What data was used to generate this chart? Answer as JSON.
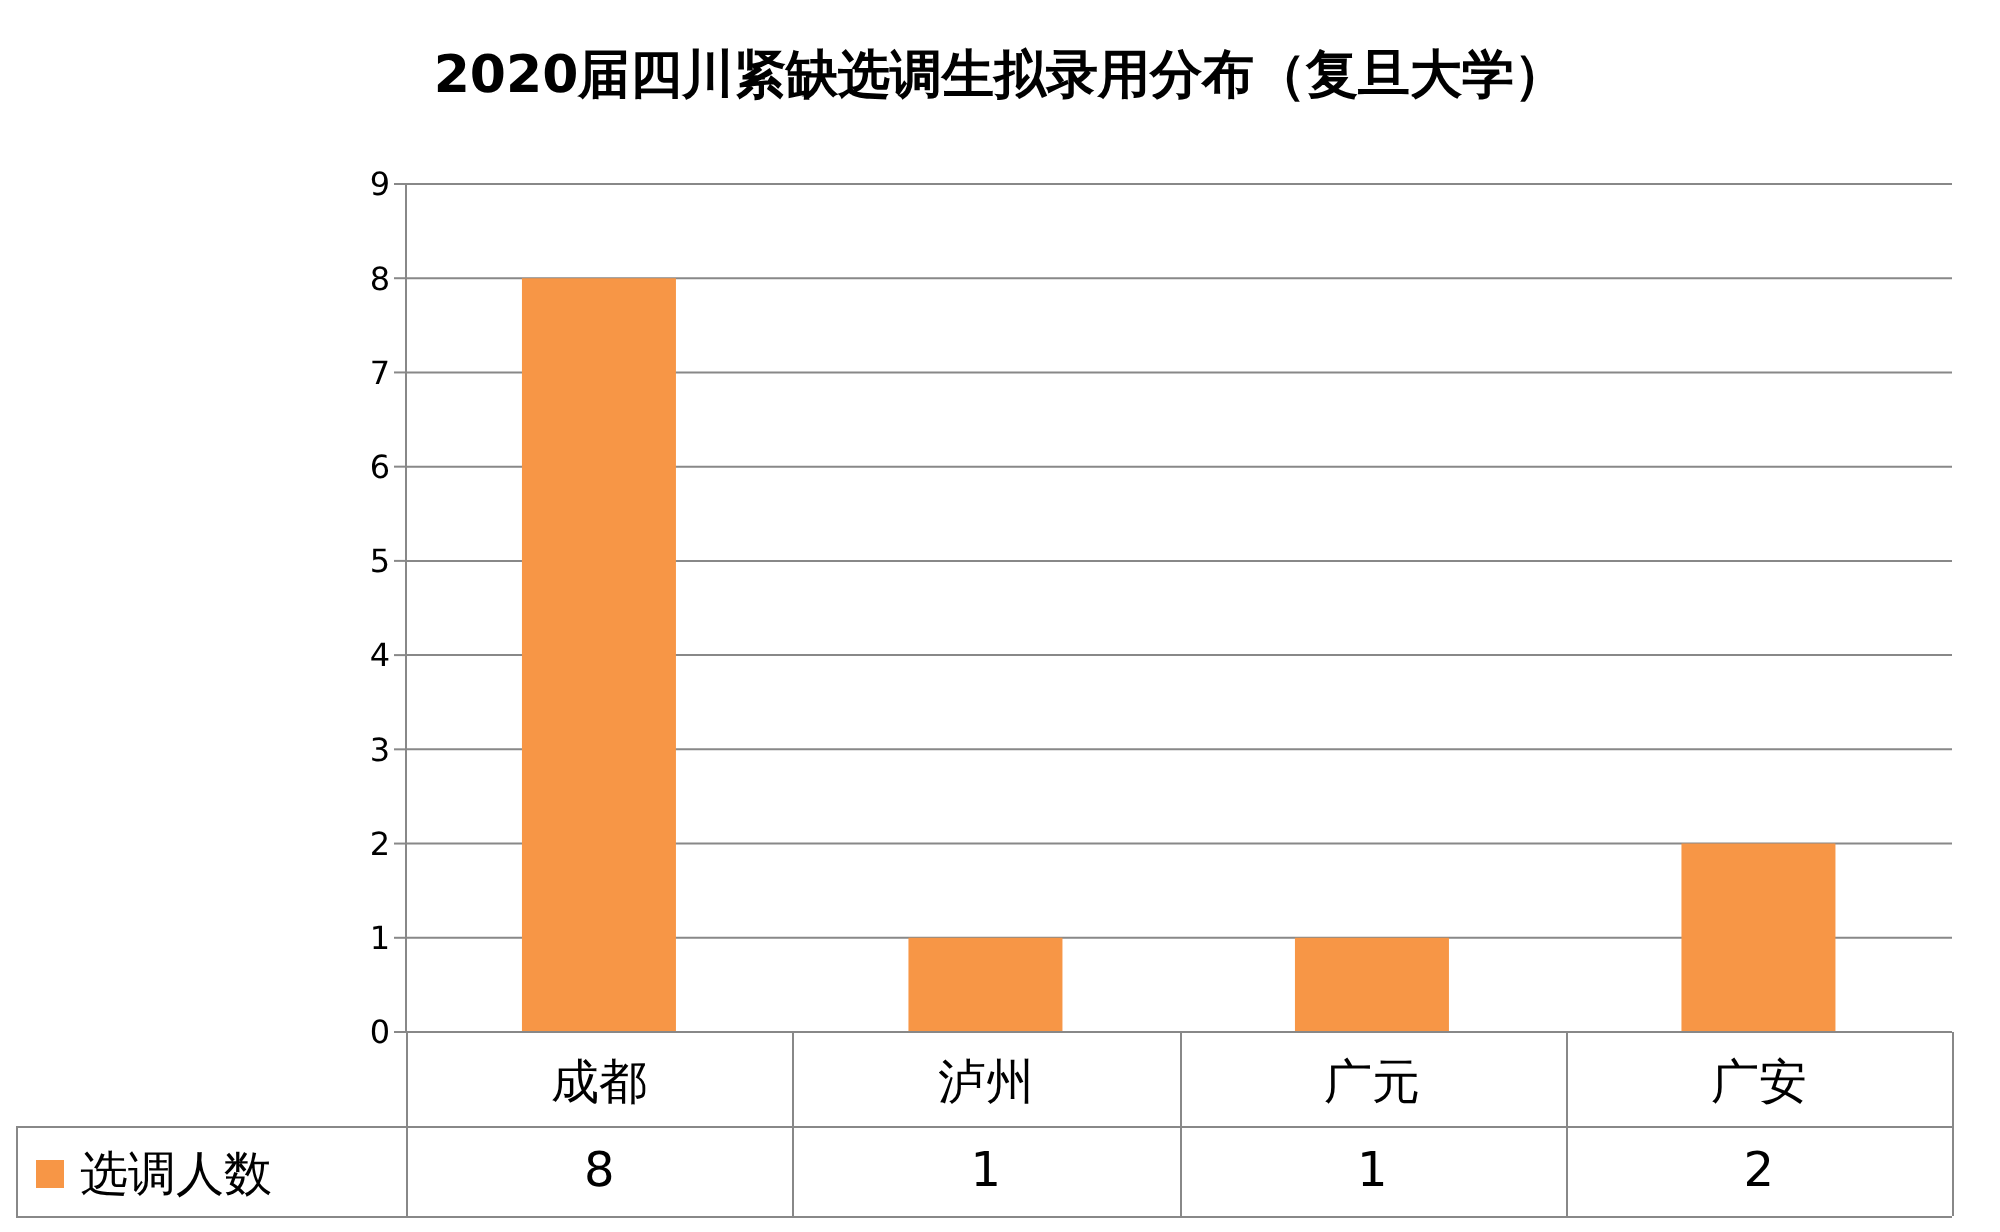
{
  "chart_data": {
    "type": "bar",
    "title": "2020届四川紧缺选调生拟录用分布（复旦大学）",
    "categories": [
      "成都",
      "泸州",
      "广元",
      "广安"
    ],
    "series": [
      {
        "name": "选调人数",
        "color": "#f79646",
        "values": [
          8,
          1,
          1,
          2
        ]
      }
    ],
    "ylim": [
      0,
      9
    ],
    "yticks": [
      0,
      1,
      2,
      3,
      4,
      5,
      6,
      7,
      8,
      9
    ],
    "grid": "y",
    "legend": "bottom",
    "data_labels": true
  }
}
